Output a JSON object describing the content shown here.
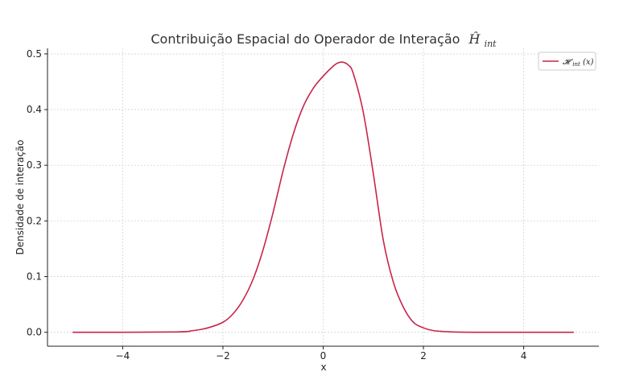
{
  "chart_data": {
    "type": "line",
    "title": "Contribuição Espacial do Operador de Interação",
    "title_symbol": "Ĥ",
    "title_symbol_sub": "int",
    "xlabel": "x",
    "ylabel": "Densidade de interação",
    "xlim": [
      -5.5,
      5.5
    ],
    "ylim": [
      -0.025,
      0.51
    ],
    "xticks": [
      -4,
      -2,
      0,
      2,
      4
    ],
    "xtick_labels": [
      "−4",
      "−2",
      "0",
      "2",
      "4"
    ],
    "yticks": [
      0.0,
      0.1,
      0.2,
      0.3,
      0.4,
      0.5
    ],
    "ytick_labels": [
      "0.0",
      "0.1",
      "0.2",
      "0.3",
      "0.4",
      "0.5"
    ],
    "grid": true,
    "legend_position": "top-right",
    "series": [
      {
        "name": "𝓗int(x)",
        "name_main": "𝓗",
        "name_sub": "int",
        "name_tail": "(x)",
        "color": "#c8254a",
        "x": [
          -5.0,
          -3.0,
          -2.6,
          -2.3,
          -2.0,
          -1.8,
          -1.6,
          -1.4,
          -1.2,
          -1.0,
          -0.8,
          -0.6,
          -0.4,
          -0.2,
          0.0,
          0.2,
          0.3,
          0.4,
          0.5,
          0.6,
          0.8,
          1.0,
          1.2,
          1.4,
          1.6,
          1.8,
          2.0,
          2.2,
          2.5,
          3.0,
          5.0
        ],
        "y": [
          0.0,
          0.0005,
          0.003,
          0.008,
          0.018,
          0.033,
          0.058,
          0.095,
          0.148,
          0.215,
          0.29,
          0.355,
          0.405,
          0.438,
          0.46,
          0.478,
          0.484,
          0.485,
          0.48,
          0.465,
          0.395,
          0.285,
          0.165,
          0.09,
          0.045,
          0.018,
          0.008,
          0.003,
          0.001,
          0.0001,
          0.0
        ]
      }
    ]
  }
}
